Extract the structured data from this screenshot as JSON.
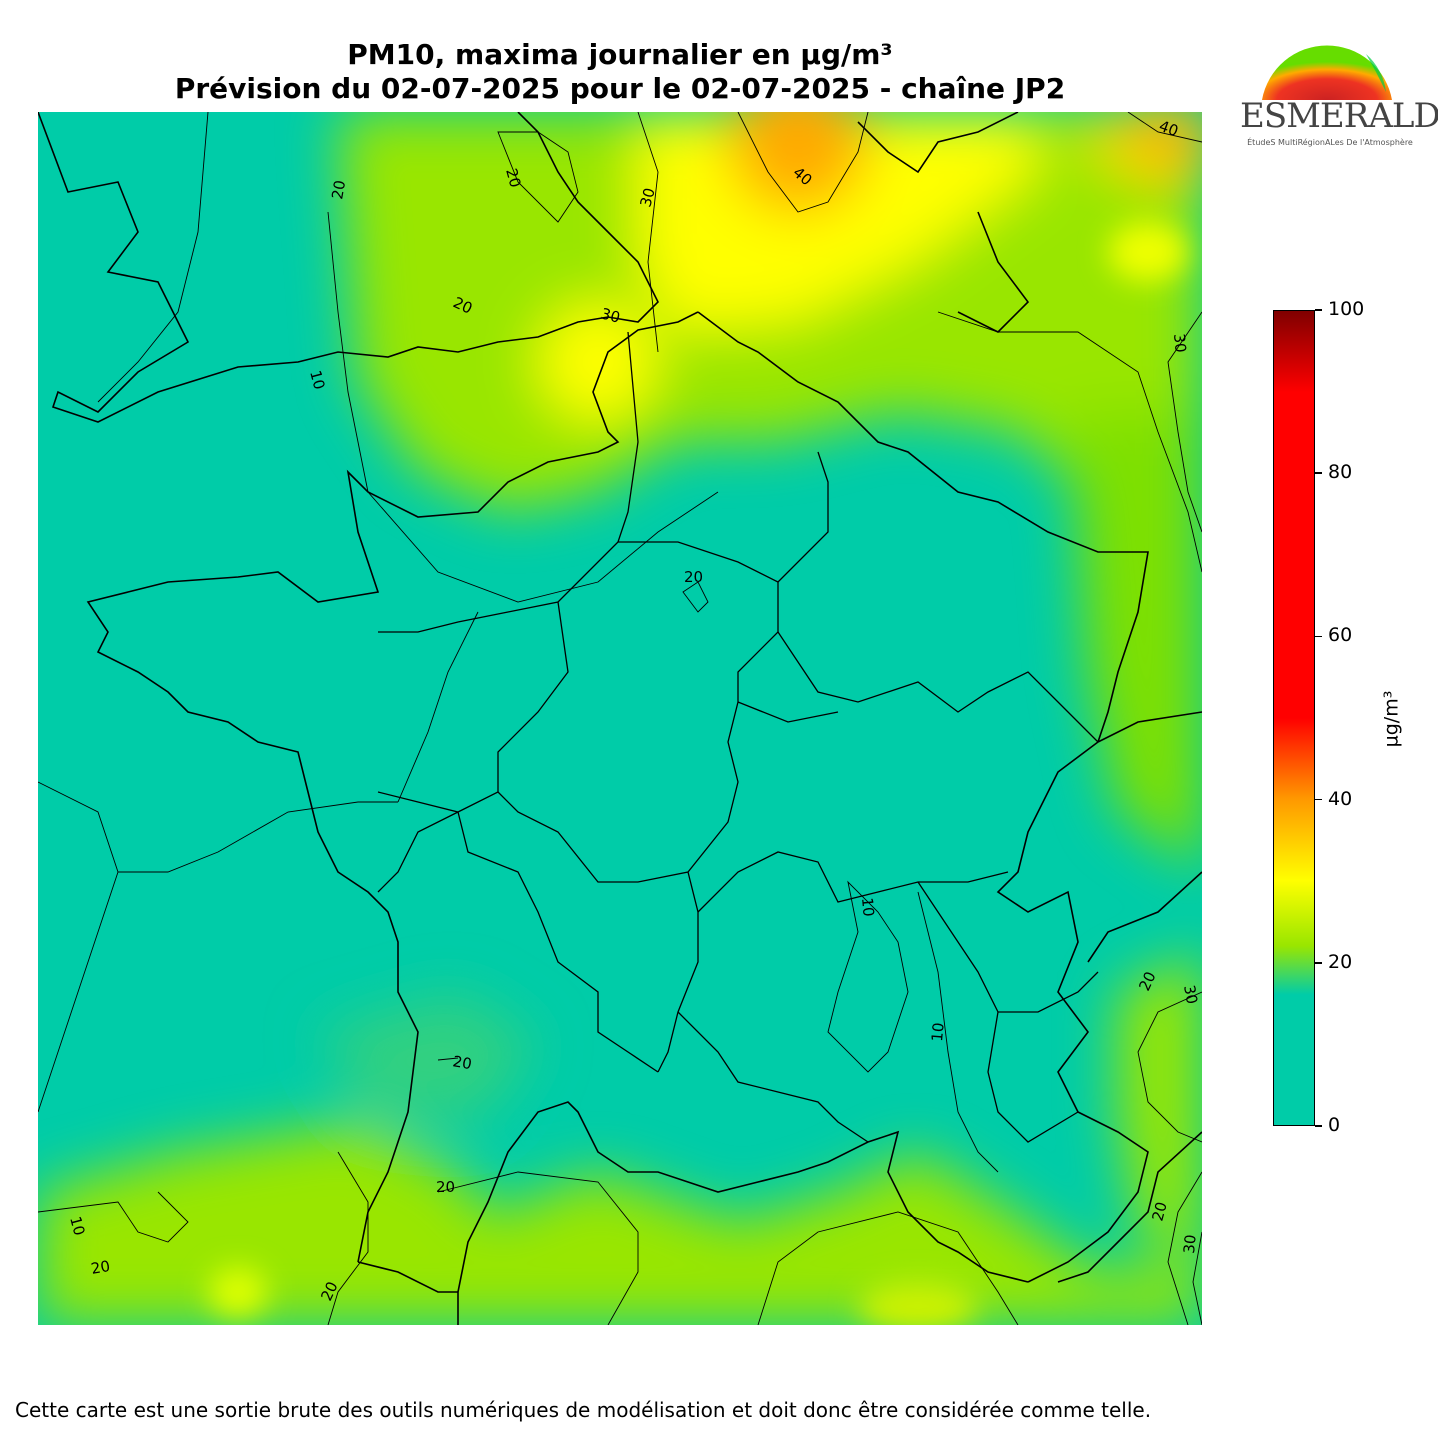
{
  "header": {
    "title_line1": "PM10, maxima journalier en µg/m³",
    "title_line2": "Prévision du 02-07-2025 pour le 02-07-2025 - chaîne JP2"
  },
  "logo": {
    "name": "ESMERALDA",
    "subtitle": "ÉtudeS MultiRégionALes De l'Atmosphère"
  },
  "colorbar": {
    "unit": "µg/m³",
    "min": 0,
    "max": 100,
    "ticks": [
      "0",
      "20",
      "40",
      "60",
      "80",
      "100"
    ],
    "colors": {
      "0": "#00cca8",
      "16": "#00cca8",
      "22": "#99e600",
      "30": "#ffff00",
      "40": "#ff9900",
      "50": "#ff0000",
      "90": "#ff0000",
      "100": "#800000"
    }
  },
  "map": {
    "contour_labels": [
      {
        "text": "20"
      },
      {
        "text": "20"
      },
      {
        "text": "30"
      },
      {
        "text": "40"
      },
      {
        "text": "40"
      },
      {
        "text": "20"
      },
      {
        "text": "30"
      },
      {
        "text": "10"
      },
      {
        "text": "30"
      },
      {
        "text": "20"
      },
      {
        "text": "10"
      },
      {
        "text": "10"
      },
      {
        "text": "20"
      },
      {
        "text": "30"
      },
      {
        "text": "20"
      },
      {
        "text": "20"
      },
      {
        "text": "20"
      },
      {
        "text": "30"
      },
      {
        "text": "10"
      },
      {
        "text": "20"
      },
      {
        "text": "20"
      }
    ]
  },
  "footer": {
    "disclaimer": "Cette carte est une sortie brute des outils numériques de modélisation et doit donc être considérée comme telle."
  }
}
